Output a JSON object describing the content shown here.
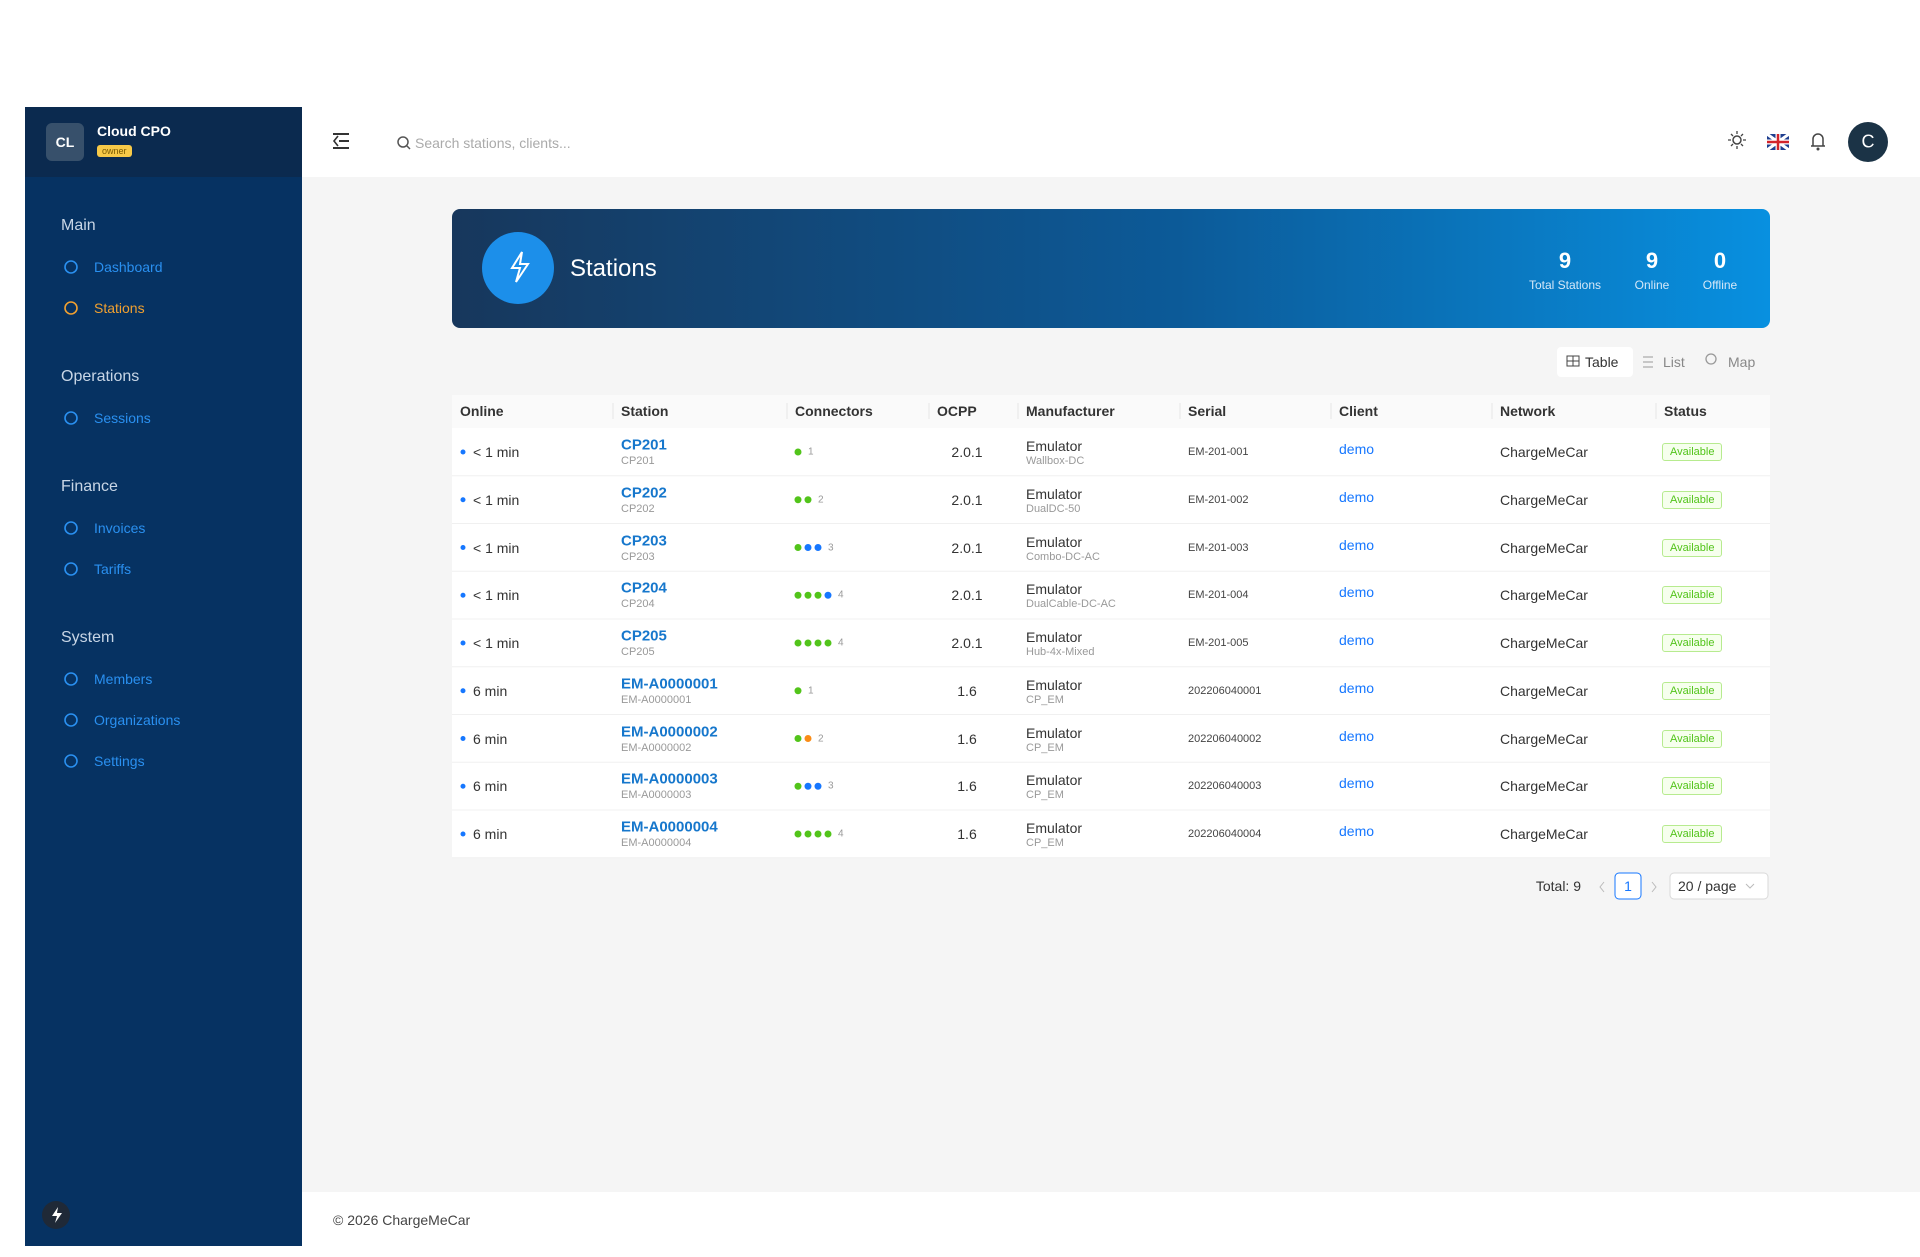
{
  "sidebar": {
    "org_initials": "CL",
    "org_name": "Cloud CPO",
    "role": "owner",
    "sections": [
      {
        "title": "Main",
        "items": [
          "Dashboard",
          "Stations"
        ]
      },
      {
        "title": "Operations",
        "items": [
          "Sessions"
        ]
      },
      {
        "title": "Finance",
        "items": [
          "Invoices",
          "Tariffs"
        ]
      },
      {
        "title": "System",
        "items": [
          "Members",
          "Organizations",
          "Settings"
        ]
      }
    ]
  },
  "topbar": {
    "search_placeholder": "Search stations, clients...",
    "avatar": "C"
  },
  "banner": {
    "title": "Stations",
    "stats": [
      {
        "value": 9,
        "label": "Total Stations"
      },
      {
        "value": 9,
        "label": "Online"
      },
      {
        "value": 0,
        "label": "Offline"
      }
    ]
  },
  "view_tabs": [
    "Table",
    "List",
    "Map"
  ],
  "table": {
    "columns": [
      "Online",
      "Station",
      "Connectors",
      "OCPP",
      "Manufacturer",
      "Serial",
      "Client",
      "Network",
      "Status"
    ],
    "rows": [
      {
        "online": "< 1 min",
        "station": "CP201",
        "station_id": "CP201",
        "connector_colors": [
          "#52c41a"
        ],
        "connectors": 1,
        "ocpp": "2.0.1",
        "manufacturer": "Emulator",
        "model": "Wallbox-DC",
        "serial": "EM-201-001",
        "client": "demo",
        "network": "ChargeMeCar",
        "status": "Available"
      },
      {
        "online": "< 1 min",
        "station": "CP202",
        "station_id": "CP202",
        "connector_colors": [
          "#52c41a",
          "#52c41a"
        ],
        "connectors": 2,
        "ocpp": "2.0.1",
        "manufacturer": "Emulator",
        "model": "DualDC-50",
        "serial": "EM-201-002",
        "client": "demo",
        "network": "ChargeMeCar",
        "status": "Available"
      },
      {
        "online": "< 1 min",
        "station": "CP203",
        "station_id": "CP203",
        "connector_colors": [
          "#52c41a",
          "#1677ff",
          "#1677ff"
        ],
        "connectors": 3,
        "ocpp": "2.0.1",
        "manufacturer": "Emulator",
        "model": "Combo-DC-AC",
        "serial": "EM-201-003",
        "client": "demo",
        "network": "ChargeMeCar",
        "status": "Available"
      },
      {
        "online": "< 1 min",
        "station": "CP204",
        "station_id": "CP204",
        "connector_colors": [
          "#52c41a",
          "#52c41a",
          "#52c41a",
          "#1677ff"
        ],
        "connectors": 4,
        "ocpp": "2.0.1",
        "manufacturer": "Emulator",
        "model": "DualCable-DC-AC",
        "serial": "EM-201-004",
        "client": "demo",
        "network": "ChargeMeCar",
        "status": "Available"
      },
      {
        "online": "< 1 min",
        "station": "CP205",
        "station_id": "CP205",
        "connector_colors": [
          "#52c41a",
          "#52c41a",
          "#52c41a",
          "#52c41a"
        ],
        "connectors": 4,
        "ocpp": "2.0.1",
        "manufacturer": "Emulator",
        "model": "Hub-4x-Mixed",
        "serial": "EM-201-005",
        "client": "demo",
        "network": "ChargeMeCar",
        "status": "Available"
      },
      {
        "online": "6 min",
        "station": "EM-A0000001",
        "station_id": "EM-A0000001",
        "connector_colors": [
          "#52c41a"
        ],
        "connectors": 1,
        "ocpp": "1.6",
        "manufacturer": "Emulator",
        "model": "CP_EM",
        "serial": "202206040001",
        "client": "demo",
        "network": "ChargeMeCar",
        "status": "Available"
      },
      {
        "online": "6 min",
        "station": "EM-A0000002",
        "station_id": "EM-A0000002",
        "connector_colors": [
          "#52c41a",
          "#fa8c16"
        ],
        "connectors": 2,
        "ocpp": "1.6",
        "manufacturer": "Emulator",
        "model": "CP_EM",
        "serial": "202206040002",
        "client": "demo",
        "network": "ChargeMeCar",
        "status": "Available"
      },
      {
        "online": "6 min",
        "station": "EM-A0000003",
        "station_id": "EM-A0000003",
        "connector_colors": [
          "#52c41a",
          "#1677ff",
          "#1677ff"
        ],
        "connectors": 3,
        "ocpp": "1.6",
        "manufacturer": "Emulator",
        "model": "CP_EM",
        "serial": "202206040003",
        "client": "demo",
        "network": "ChargeMeCar",
        "status": "Available"
      },
      {
        "online": "6 min",
        "station": "EM-A0000004",
        "station_id": "EM-A0000004",
        "connector_colors": [
          "#52c41a",
          "#52c41a",
          "#52c41a",
          "#52c41a"
        ],
        "connectors": 4,
        "ocpp": "1.6",
        "manufacturer": "Emulator",
        "model": "CP_EM",
        "serial": "202206040004",
        "client": "demo",
        "network": "ChargeMeCar",
        "status": "Available"
      }
    ]
  },
  "pagination": {
    "total": "Total: 9",
    "page": 1,
    "page_size": "20 / page"
  },
  "footer": "© 2026 ChargeMeCar"
}
